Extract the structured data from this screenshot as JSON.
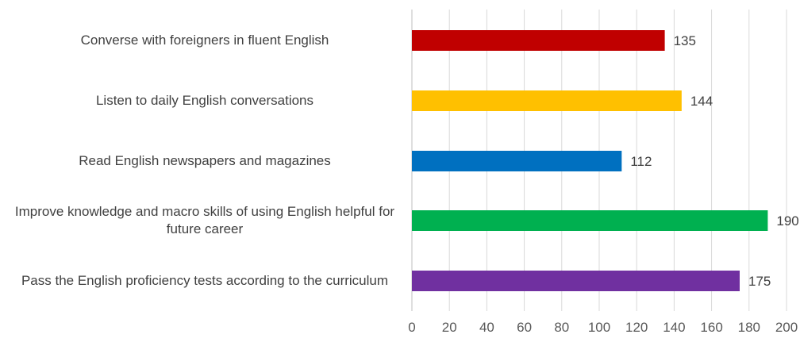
{
  "chart_data": {
    "type": "bar",
    "orientation": "horizontal",
    "categories": [
      "Converse with foreigners in fluent English",
      "Listen to daily English conversations",
      "Read English newspapers and magazines",
      "Improve knowledge and macro skills of using English helpful for future career",
      "Pass the English proficiency tests according to the curriculum"
    ],
    "values": [
      135,
      144,
      112,
      190,
      175
    ],
    "colors": [
      "#C00000",
      "#FFC000",
      "#0070C0",
      "#00B050",
      "#7030A0"
    ],
    "xlim": [
      0,
      200
    ],
    "xticks": [
      0,
      20,
      40,
      60,
      80,
      100,
      120,
      140,
      160,
      180,
      200
    ],
    "grid": "vertical",
    "legend": "none",
    "data_labels": true,
    "title": "",
    "xlabel": "",
    "ylabel": ""
  }
}
